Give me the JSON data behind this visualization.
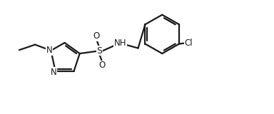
{
  "bg_color": "#ffffff",
  "line_color": "#1a1a1a",
  "line_width": 1.6,
  "font_size": 8.5,
  "xlim": [
    0,
    10
  ],
  "ylim": [
    0,
    4.2
  ]
}
